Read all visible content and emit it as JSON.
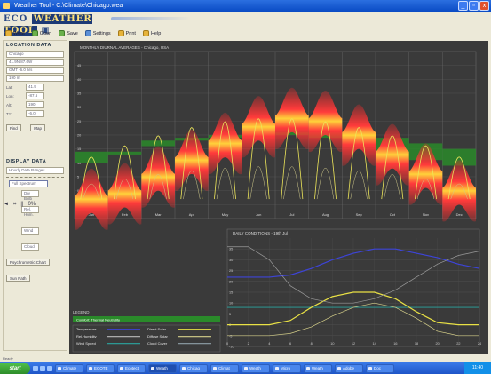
{
  "window": {
    "title": "Weather Tool - C:\\Climate\\Chicago.wea",
    "min": "_",
    "max": "▫",
    "close": "x"
  },
  "app": {
    "logo_prefix": "ECO",
    "logo_main": "WEATHER TOOL",
    "logo_mark": "▣"
  },
  "toolbar": {
    "items": [
      {
        "label": "Weat",
        "icon": "sun-icon"
      },
      {
        "label": "Open",
        "icon": "folder-open-icon"
      },
      {
        "label": "Save",
        "icon": "save-icon"
      },
      {
        "label": "Settings",
        "icon": "gear-icon"
      },
      {
        "label": "Print",
        "icon": "print-icon"
      },
      {
        "label": "Help",
        "icon": "help-icon"
      }
    ]
  },
  "left_panel": {
    "location_title": "LOCATION DATA",
    "fields": [
      "Chicago",
      "41.9N  87.6W",
      "GMT -6.0 hrs",
      "190 m"
    ],
    "small_fields": [
      {
        "label": "Lat:",
        "value": "41.9"
      },
      {
        "label": "Lon:",
        "value": "-87.6"
      },
      {
        "label": "Alt:",
        "value": "190"
      },
      {
        "label": "Tz:",
        "value": "-6.0"
      }
    ],
    "buttons": [
      "Find",
      "Map"
    ],
    "display_title": "DISPLAY DATA",
    "display_select": "Hourly Data Ranges",
    "color_select": "Full Spectrum",
    "options": [
      "Dry Bulb",
      "Rel. Hum.",
      "Wind",
      "Cloud"
    ],
    "extra_buttons": [
      "Psychrometric Chart",
      "Sun Path"
    ],
    "controls": [
      "◄",
      "⌗",
      "||",
      "0%"
    ]
  },
  "chart_data": [
    {
      "type": "heatmap",
      "title": "MONTHLY DIURNAL AVERAGES - Chicago, USA",
      "categories": [
        "Jan",
        "Feb",
        "Mar",
        "Apr",
        "May",
        "Jun",
        "Jul",
        "Aug",
        "Sep",
        "Oct",
        "Nov",
        "Dec"
      ],
      "ylim": [
        -10,
        50
      ],
      "yticks": [
        45,
        40,
        35,
        30,
        25,
        20,
        15,
        10,
        5,
        0,
        -5
      ],
      "series": [
        {
          "values": [
            -4,
            -2,
            4,
            10,
            16,
            22,
            25,
            24,
            19,
            12,
            5,
            -1
          ]
        },
        {
          "values": [
            14,
            14,
            18,
            19,
            20,
            21,
            21,
            21,
            20,
            19,
            17,
            15
          ]
        },
        {
          "values": [
            10,
            13,
            16,
            18,
            19,
            20,
            20,
            19,
            17,
            14,
            11,
            9
          ]
        }
      ]
    },
    {
      "type": "line",
      "title": "DAILY CONDITIONS - 19th Jul",
      "x": [
        0,
        2,
        4,
        6,
        8,
        10,
        12,
        14,
        16,
        18,
        20,
        22,
        24
      ],
      "xlim": [
        0,
        24
      ],
      "ylim": [
        -10,
        40
      ],
      "yticks": [
        35,
        30,
        25,
        20,
        15,
        10,
        5,
        0,
        -5,
        -10
      ],
      "series": [
        {
          "values": [
            22,
            22,
            22,
            23,
            26,
            30,
            33,
            35,
            35,
            33,
            31,
            28,
            26
          ]
        },
        {
          "values": [
            8,
            8,
            8,
            8,
            8,
            8,
            8,
            8,
            8,
            8,
            8,
            8,
            8
          ]
        },
        {
          "values": [
            0,
            0,
            0,
            2,
            8,
            13,
            15,
            15,
            12,
            6,
            1,
            0,
            0
          ]
        },
        {
          "values": [
            -5,
            -5,
            -5,
            -4,
            -1,
            4,
            8,
            10,
            8,
            3,
            -3,
            -5,
            -5
          ]
        },
        {
          "values": [
            36,
            36,
            30,
            18,
            12,
            10,
            10,
            12,
            16,
            22,
            28,
            32,
            34
          ]
        }
      ]
    }
  ],
  "legend": {
    "title": "LEGEND",
    "band": "Comfort: Thermal Neutrality",
    "items": [
      {
        "label": "Temperature",
        "color": "#3d44d8"
      },
      {
        "label": "Rel.Humidity",
        "color": "#bbbbbb"
      },
      {
        "label": "Wind Speed",
        "color": "#2aa6a0"
      },
      {
        "label": "Direct Solar",
        "color": "#e9e145"
      },
      {
        "label": "Diffuse Solar",
        "color": "#d6d08a"
      },
      {
        "label": "Cloud Cover",
        "color": "#8fa0a8"
      }
    ]
  },
  "status": {
    "text": "Ready"
  },
  "taskbar": {
    "start": "start",
    "tasks": [
      "Climate",
      "ECOTE",
      "Ecotect",
      "Weath",
      "Chicag",
      "Climat",
      "Weath",
      "Micro",
      "Weath",
      "Adobe",
      "Doc"
    ],
    "clock": "11:40"
  },
  "colors": {
    "accent": "#1d3a76",
    "comfort": "#2a8a2a",
    "heat": "#ff3a3a",
    "grid": "#7a7a7a",
    "panel": "#3a3a3a"
  }
}
